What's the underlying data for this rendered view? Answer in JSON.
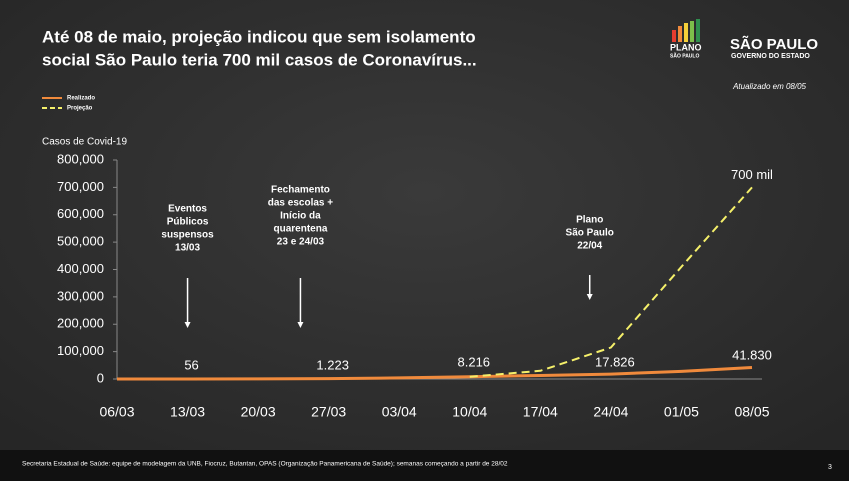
{
  "title": [
    "Até 08 de maio, projeção indicou que sem isolamento",
    "social São Paulo teria 700 mil casos de Coronavírus..."
  ],
  "logos": {
    "plano": [
      "PLANO",
      "SÃO PAULO"
    ],
    "governo": [
      "SÃO PAULO",
      "GOVERNO DO ESTADO"
    ]
  },
  "updated": "Atualizado em 08/05",
  "footer": "Secretaria Estadual de Saúde: equipe de modelagem da UNB, Fiocruz, Butantan, OPAS (Organização Panamericana de Saúde); semanas começando a partir de 28/02",
  "page_number": "3",
  "chart_data": {
    "type": "line",
    "ylabel": "Casos de Covid-19",
    "categories": [
      "06/03",
      "13/03",
      "20/03",
      "27/03",
      "03/04",
      "10/04",
      "17/04",
      "24/04",
      "01/05",
      "08/05"
    ],
    "series": [
      {
        "name": "Realizado",
        "color": "#f08a3c",
        "dash": false,
        "values": [
          0,
          56,
          400,
          1223,
          4000,
          8216,
          13000,
          17826,
          28000,
          41830
        ],
        "value_labels": [
          null,
          "56",
          null,
          "1.223",
          null,
          "8.216",
          null,
          "17.826",
          null,
          "41.830"
        ]
      },
      {
        "name": "Projeção",
        "color": "#f5f06a",
        "dash": true,
        "values": [
          null,
          null,
          null,
          null,
          null,
          8216,
          30000,
          115000,
          410000,
          700000
        ],
        "value_labels": [
          null,
          null,
          null,
          null,
          null,
          null,
          null,
          null,
          null,
          "700 mil"
        ]
      }
    ],
    "ylim": [
      0,
      800000
    ],
    "yticks": [
      0,
      {
        "value": 100000,
        "label": "100,000"
      },
      {
        "value": 200000,
        "label": "200,000"
      },
      {
        "value": 300000,
        "label": "300,000"
      },
      {
        "value": 400000,
        "label": "400,000"
      },
      {
        "value": 500000,
        "label": "500,000"
      },
      {
        "value": 600000,
        "label": "600,000"
      },
      {
        "value": 700000,
        "label": "700,000"
      },
      {
        "value": 800000,
        "label": "800,000"
      }
    ],
    "annotations": [
      {
        "lines": [
          "Eventos",
          "Públicos",
          "suspensos",
          "13/03"
        ],
        "category": 1
      },
      {
        "lines": [
          "Fechamento",
          "das escolas +",
          "Início da",
          "quarentena",
          "23 e 24/03"
        ],
        "category": 2.6
      },
      {
        "lines": [
          "Plano",
          "São Paulo",
          "22/04"
        ],
        "category": 6.7
      }
    ]
  }
}
